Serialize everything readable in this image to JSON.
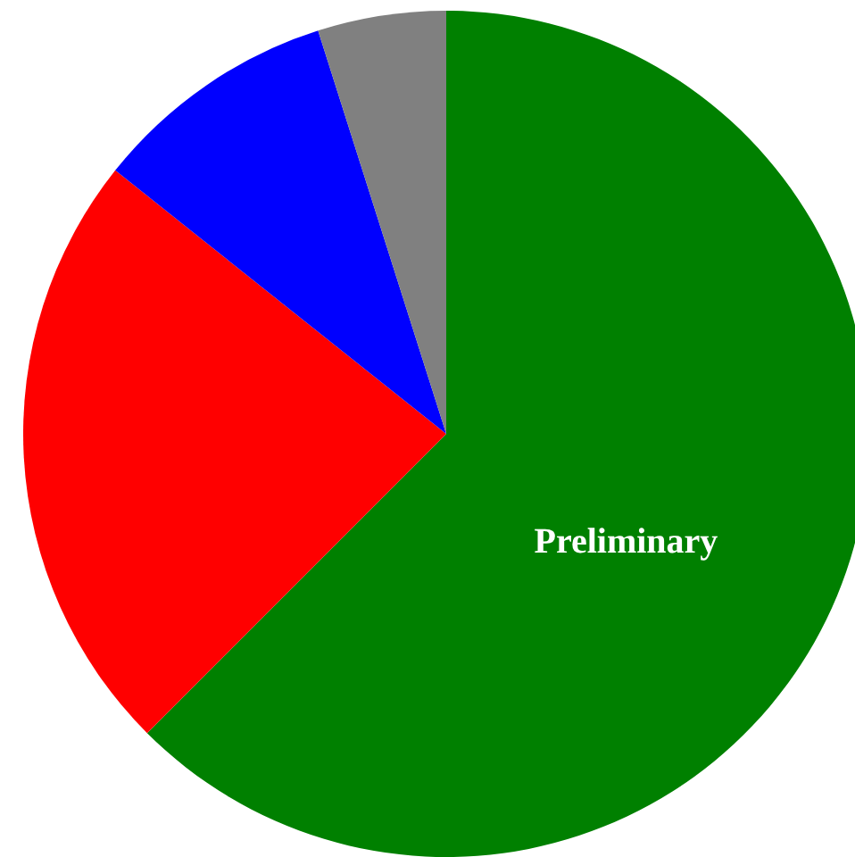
{
  "chart_data": {
    "type": "pie",
    "categories": [
      "Preliminary",
      null,
      null,
      null
    ],
    "values": [
      62.5,
      23.2,
      9.4,
      4.9
    ],
    "colors": [
      "#008000",
      "#ff0000",
      "#0000ff",
      "#808080"
    ]
  }
}
